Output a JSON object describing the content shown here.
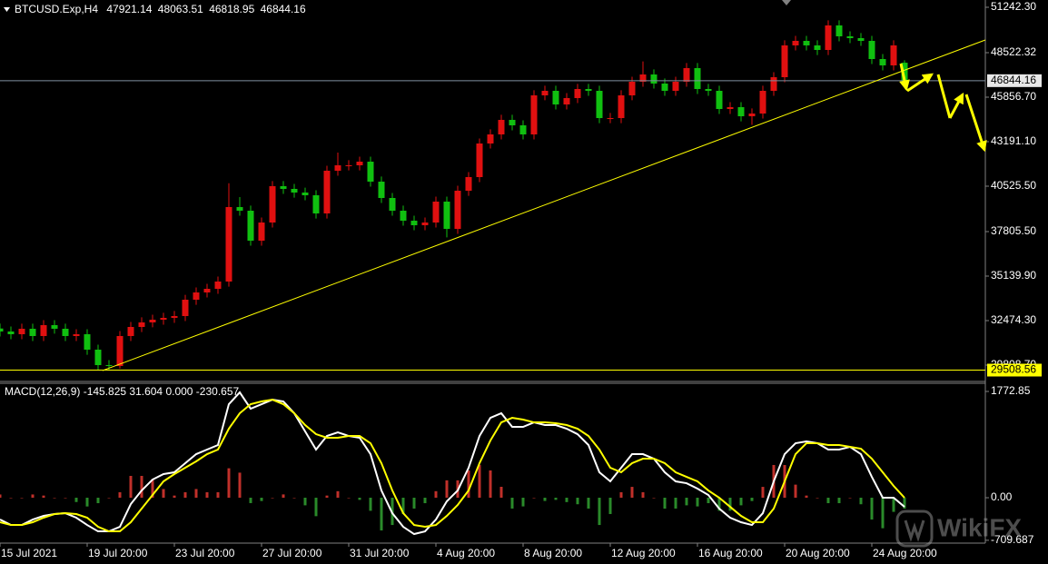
{
  "chart_data": [
    {
      "type": "candlestick",
      "title": "BTCUSD.Exp,H4",
      "x": [
        "15 Jul 20:00",
        "16 Jul 08:00",
        "16 Jul 20:00",
        "17 Jul 08:00",
        "17 Jul 20:00",
        "18 Jul 08:00",
        "18 Jul 20:00",
        "19 Jul 08:00",
        "19 Jul 20:00",
        "20 Jul 08:00",
        "20 Jul 20:00",
        "21 Jul 08:00",
        "21 Jul 20:00",
        "22 Jul 08:00",
        "22 Jul 20:00",
        "23 Jul 08:00",
        "23 Jul 20:00",
        "24 Jul 08:00",
        "24 Jul 20:00",
        "25 Jul 08:00",
        "25 Jul 20:00",
        "26 Jul 08:00",
        "26 Jul 20:00",
        "27 Jul 08:00",
        "27 Jul 20:00",
        "28 Jul 08:00",
        "28 Jul 20:00",
        "29 Jul 08:00",
        "29 Jul 20:00",
        "30 Jul 08:00",
        "30 Jul 20:00",
        "31 Jul 08:00",
        "31 Jul 20:00",
        "1 Aug 08:00",
        "1 Aug 20:00",
        "2 Aug 08:00",
        "2 Aug 20:00",
        "3 Aug 08:00",
        "3 Aug 20:00",
        "4 Aug 08:00",
        "4 Aug 20:00",
        "5 Aug 08:00",
        "5 Aug 20:00",
        "6 Aug 08:00",
        "6 Aug 20:00",
        "7 Aug 08:00",
        "7 Aug 20:00",
        "8 Aug 08:00",
        "8 Aug 20:00",
        "9 Aug 08:00",
        "9 Aug 20:00",
        "10 Aug 08:00",
        "10 Aug 20:00",
        "11 Aug 08:00",
        "11 Aug 20:00",
        "12 Aug 08:00",
        "12 Aug 20:00",
        "13 Aug 08:00",
        "13 Aug 20:00",
        "14 Aug 08:00",
        "14 Aug 20:00",
        "15 Aug 08:00",
        "15 Aug 20:00",
        "16 Aug 08:00",
        "16 Aug 20:00",
        "17 Aug 08:00",
        "17 Aug 20:00",
        "18 Aug 08:00",
        "18 Aug 20:00",
        "19 Aug 08:00",
        "19 Aug 20:00",
        "20 Aug 08:00",
        "20 Aug 20:00",
        "21 Aug 08:00",
        "21 Aug 20:00",
        "22 Aug 08:00",
        "22 Aug 20:00",
        "23 Aug 08:00",
        "23 Aug 20:00",
        "24 Aug 08:00",
        "24 Aug 20:00",
        "25 Aug 08:00",
        "25 Aug 20:00",
        "26 Aug 08:00"
      ],
      "open": [
        32000,
        31821,
        31658,
        31985,
        31549,
        32202,
        31985,
        31549,
        31658,
        30733,
        29808,
        29754,
        31549,
        32093,
        32365,
        32528,
        32637,
        32746,
        33725,
        34160,
        34378,
        34813,
        39274,
        39056,
        37261,
        38349,
        40525,
        40362,
        40144,
        39981,
        38893,
        41450,
        41776,
        41776,
        41994,
        40797,
        39818,
        39056,
        38458,
        38186,
        38349,
        39600,
        37968,
        40253,
        41069,
        43082,
        43626,
        44496,
        44170,
        43626,
        45965,
        46237,
        45421,
        45802,
        46346,
        46237,
        44605,
        44605,
        45965,
        46781,
        47216,
        46672,
        46237,
        46781,
        47597,
        46346,
        46237,
        45149,
        45258,
        44714,
        44877,
        46237,
        47053,
        48957,
        49229,
        48957,
        48685,
        50154,
        49501,
        49392,
        49229,
        48141,
        47760,
        47921.14
      ],
      "high": [
        32300,
        32120,
        32290,
        32290,
        32500,
        32500,
        32290,
        31960,
        31960,
        31030,
        30110,
        31850,
        32390,
        32670,
        32830,
        32940,
        33050,
        34020,
        34460,
        34680,
        35110,
        40700,
        39870,
        39360,
        38650,
        40830,
        40830,
        40660,
        40440,
        40280,
        41750,
        42540,
        42080,
        42290,
        42290,
        41100,
        40120,
        39360,
        38760,
        38650,
        39900,
        39900,
        40550,
        41370,
        43380,
        43930,
        44800,
        44800,
        44470,
        46270,
        46540,
        46540,
        46100,
        46650,
        46650,
        46540,
        44910,
        46270,
        47080,
        48000,
        47520,
        46980,
        47080,
        47900,
        47900,
        46650,
        46540,
        45560,
        45560,
        45180,
        46540,
        47350,
        49260,
        49530,
        49530,
        49260,
        50460,
        50460,
        49800,
        49700,
        49530,
        48440,
        49260,
        48063.51
      ],
      "low": [
        31520,
        31360,
        31360,
        31250,
        31250,
        31690,
        31250,
        31250,
        30430,
        29510,
        29510,
        29600,
        31250,
        31790,
        32070,
        32230,
        32340,
        32450,
        33420,
        33860,
        34080,
        34510,
        38760,
        36960,
        36960,
        38050,
        40060,
        39840,
        39680,
        38590,
        38590,
        41150,
        41470,
        41470,
        40500,
        39520,
        38760,
        38160,
        37890,
        37890,
        38050,
        37460,
        37670,
        39950,
        40770,
        42780,
        43330,
        43870,
        43330,
        43330,
        45670,
        45120,
        45120,
        45500,
        45940,
        44300,
        44300,
        44300,
        45670,
        46480,
        46370,
        45940,
        45940,
        46480,
        46050,
        45940,
        44850,
        44850,
        44410,
        44200,
        44580,
        45940,
        46750,
        48660,
        48660,
        48380,
        48380,
        49200,
        49090,
        48930,
        47840,
        47460,
        47460,
        46818.95
      ],
      "close": [
        31821,
        31658,
        31985,
        31549,
        32202,
        31985,
        31549,
        31658,
        30733,
        29808,
        29754,
        31549,
        32093,
        32365,
        32528,
        32637,
        32746,
        33725,
        34160,
        34378,
        34813,
        39274,
        39056,
        37261,
        38349,
        40525,
        40362,
        40144,
        39981,
        38893,
        41450,
        41776,
        41776,
        41994,
        40797,
        39818,
        39056,
        38458,
        38186,
        38349,
        39600,
        37968,
        40253,
        41069,
        43082,
        43626,
        44496,
        44170,
        43626,
        45965,
        46237,
        45421,
        45802,
        46346,
        46237,
        44605,
        44605,
        45965,
        46781,
        47216,
        46672,
        46237,
        46781,
        47597,
        46346,
        46237,
        45149,
        45258,
        44714,
        44877,
        46237,
        47053,
        48957,
        49229,
        48957,
        48685,
        50154,
        49501,
        49392,
        49229,
        48141,
        47760,
        48957,
        46844.16
      ],
      "up_color": "#e01010",
      "down_color": "#10c010",
      "ylim": [
        28829,
        51677
      ],
      "yticks": [
        {
          "value": 51242.3,
          "label": "51242.30"
        },
        {
          "value": 48522.32,
          "label": "48522.32"
        },
        {
          "value": 45856.7,
          "label": "45856.70"
        },
        {
          "value": 43191.1,
          "label": "43191.10"
        },
        {
          "value": 40525.5,
          "label": "40525.50"
        },
        {
          "value": 37805.5,
          "label": "37805.50"
        },
        {
          "value": 35139.9,
          "label": "35139.90"
        },
        {
          "value": 32474.3,
          "label": "32474.30"
        },
        {
          "value": 29808.7,
          "label": "29808.70"
        }
      ],
      "hline": {
        "value": 29508.56,
        "color": "#ffff00"
      },
      "xticks": [
        {
          "value": "15 Jul 20:00",
          "label": "15 Jul 2021"
        },
        "19 Jul 20:00",
        "23 Jul 20:00",
        "27 Jul 20:00",
        "31 Jul 20:00",
        "4 Aug 20:00",
        "8 Aug 20:00",
        "12 Aug 20:00",
        "16 Aug 20:00",
        "20 Aug 20:00",
        "24 Aug 20:00"
      ],
      "watermark": "WikiFX"
    },
    {
      "type": "macd",
      "title": "MACD(12,26,9) -145.825 31.604 0.000 -230.657",
      "histogram": {
        "up_color": "#c0302a",
        "down_color": "#2a8a2a",
        "values": [
          54,
          0,
          0,
          54,
          36,
          0,
          0,
          -72,
          -146,
          -91,
          0,
          91,
          364,
          364,
          310,
          145,
          36,
          91,
          145,
          91,
          91,
          491,
          418,
          -90,
          -55,
          0,
          55,
          0,
          -127,
          -308,
          36,
          109,
          0,
          -36,
          -218,
          -546,
          -455,
          -272,
          -181,
          -91,
          109,
          290,
          290,
          455,
          545,
          455,
          182,
          -181,
          -145,
          0,
          -54,
          -36,
          -73,
          -109,
          -181,
          -455,
          -272,
          91,
          181,
          91,
          0,
          -182,
          -181,
          -127,
          -145,
          -91,
          -218,
          -217,
          -127,
          -55,
          181,
          546,
          545,
          218,
          36,
          0,
          -91,
          -91,
          0,
          -109,
          -364,
          -509,
          -236,
          -182
        ]
      },
      "series": [
        {
          "color": "#ffffff",
          "values": [
            -364,
            -455,
            -455,
            -364,
            -303,
            -273,
            -258,
            -333,
            -455,
            -561,
            -561,
            -485,
            -106,
            121,
            303,
            394,
            424,
            576,
            727,
            803,
            879,
            1560,
            1757,
            1485,
            1560,
            1636,
            1606,
            1409,
            1106,
            803,
            1030,
            1091,
            1030,
            1000,
            727,
            121,
            -258,
            -485,
            -606,
            -561,
            -364,
            -61,
            121,
            500,
            1030,
            1333,
            1409,
            1182,
            1182,
            1257,
            1212,
            1212,
            1151,
            1060,
            879,
            424,
            273,
            500,
            727,
            727,
            651,
            424,
            273,
            242,
            152,
            45,
            -182,
            -333,
            -409,
            -455,
            -258,
            273,
            727,
            909,
            939,
            909,
            803,
            803,
            848,
            727,
            348,
            0,
            0,
            -152
          ]
        },
        {
          "color": "#ffff00",
          "values": [
            -409,
            -455,
            -455,
            -409,
            -333,
            -273,
            -258,
            -273,
            -333,
            -485,
            -561,
            -561,
            -409,
            -182,
            45,
            273,
            394,
            500,
            606,
            727,
            803,
            1151,
            1409,
            1560,
            1606,
            1636,
            1560,
            1409,
            1212,
            1060,
            1000,
            1000,
            1030,
            1030,
            909,
            576,
            121,
            -258,
            -455,
            -485,
            -455,
            -303,
            -121,
            121,
            576,
            954,
            1257,
            1333,
            1303,
            1257,
            1257,
            1242,
            1212,
            1151,
            1030,
            803,
            500,
            424,
            576,
            651,
            651,
            576,
            424,
            348,
            273,
            121,
            0,
            -152,
            -303,
            -409,
            -409,
            -182,
            273,
            727,
            909,
            909,
            879,
            879,
            848,
            818,
            651,
            424,
            197,
            0
          ]
        }
      ],
      "ylim": [
        -742,
        1909
      ],
      "yticks": [
        1772.85,
        {
          "value": 0,
          "label": "0.00"
        },
        -709.687
      ]
    }
  ]
}
